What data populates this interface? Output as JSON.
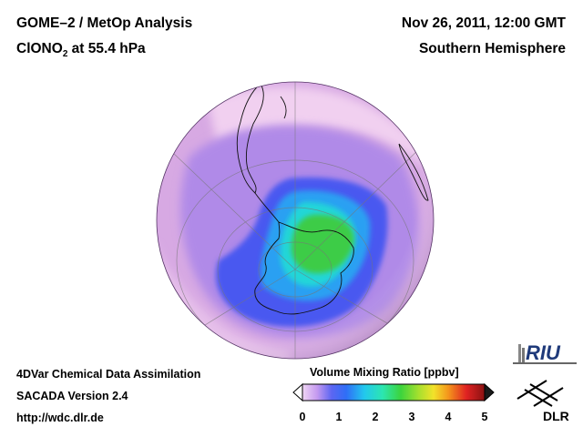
{
  "header": {
    "title_line1": "GOME–2 / MetOp Analysis",
    "species_main": "ClONO",
    "species_sub": "2",
    "level": " at 55.4 hPa",
    "date": "Nov 26, 2011, 12:00 GMT",
    "region": "Southern Hemisphere"
  },
  "footer": {
    "line1": "4DVar Chemical Data Assimilation",
    "line2": "SACADA Version 2.4",
    "line3": "http://wdc.dlr.de"
  },
  "colorbar": {
    "title": "Volume Mixing Ratio [ppbv]",
    "ticks": [
      "0",
      "1",
      "2",
      "3",
      "4",
      "5"
    ],
    "range": [
      0,
      5
    ]
  },
  "logos": {
    "riu": "RIU",
    "dlr": "DLR"
  },
  "colors": {
    "background": "#ffffff",
    "outer_field": "#e2b6e6",
    "mid_ring": "#a982ee",
    "vortex_blue": "#3c50f0",
    "vortex_core": "#1bd1e6",
    "polar_max": "#3fd23c"
  }
}
